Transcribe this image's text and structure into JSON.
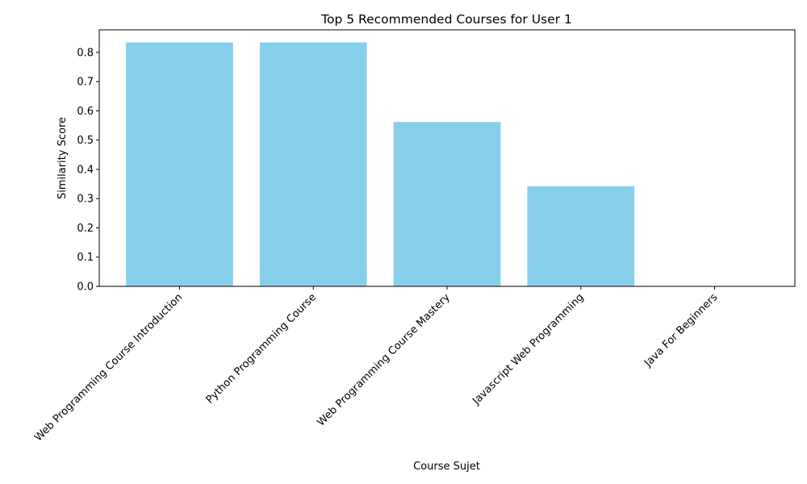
{
  "chart_data": {
    "type": "bar",
    "title": "Top 5 Recommended Courses for User 1",
    "xlabel": "Course Sujet",
    "ylabel": "Similarity Score",
    "categories": [
      "Web Programming Course Introduction",
      "Python Programming Course",
      "Web Programming Course Mastery",
      "Javascript Web Programming",
      "Java For Beginners"
    ],
    "values": [
      0.834,
      0.834,
      0.562,
      0.342,
      0.0
    ],
    "ylim": [
      0,
      0.877
    ],
    "yticks": [
      0.0,
      0.1,
      0.2,
      0.3,
      0.4,
      0.5,
      0.6,
      0.7,
      0.8
    ],
    "ytick_labels": [
      "0.0",
      "0.1",
      "0.2",
      "0.3",
      "0.4",
      "0.5",
      "0.6",
      "0.7",
      "0.8"
    ],
    "grid": false,
    "bar_color": "#87ceeb"
  }
}
